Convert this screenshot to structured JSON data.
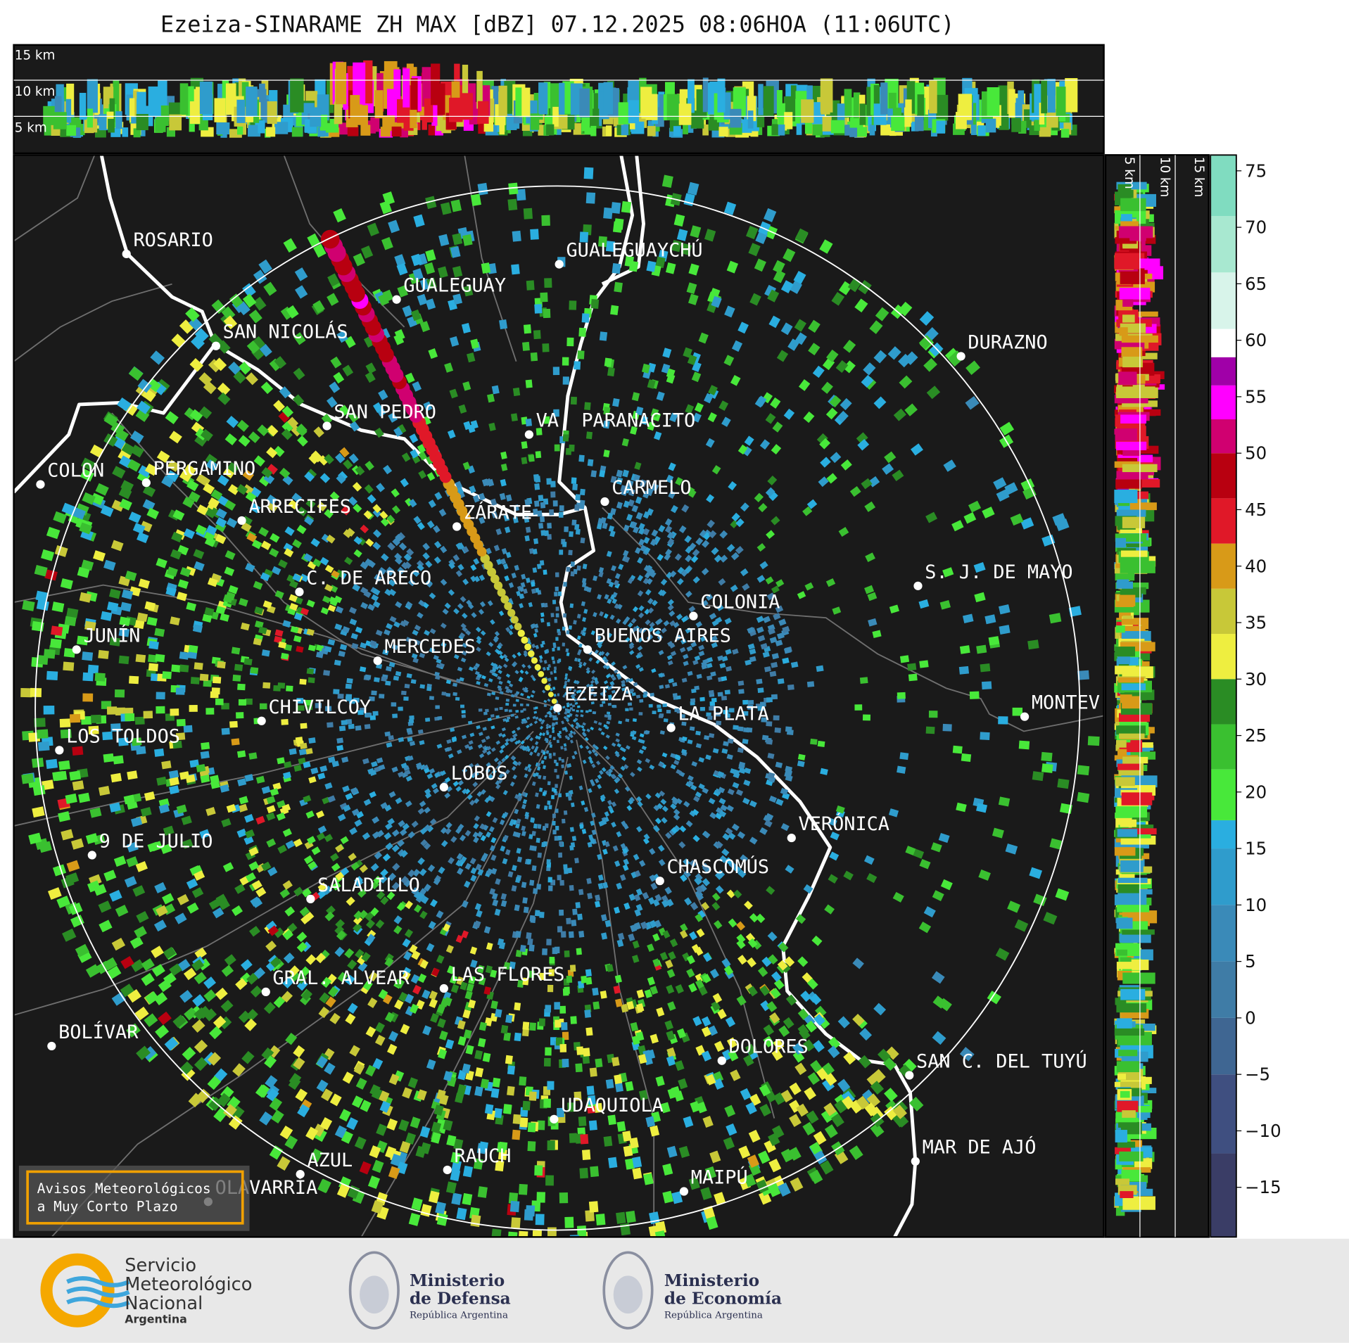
{
  "title": "Ezeiza-SINARAME ZH MAX [dBZ] 07.12.2025 08:06HOA (11:06UTC)",
  "profile_labels": {
    "top": [
      "15 km",
      "10 km",
      "5 km"
    ],
    "side": [
      "5 km",
      "10 km",
      "15 km"
    ]
  },
  "cities": [
    "ROSARIO",
    "GUALEGUAYCHÚ",
    "GUALEGUAY",
    "SAN NICOLÁS",
    "DURAZNO",
    "SAN PEDRO",
    "VA. PARANACITO",
    "COLON",
    "PERGAMINO",
    "CARMELO",
    "ARRECIFES",
    "ZÁRATE",
    "S. J. DE MAYO",
    "C. DE ARECO",
    "COLONIA",
    "BUENOS AIRES",
    "JUNÍN",
    "MERCEDES",
    "EZEIZA",
    "MONTEV",
    "LA PLATA",
    "CHIVILCOY",
    "LOS TOLDOS",
    "LOBOS",
    "VERÓNICA",
    "9 DE JULIO",
    "CHASCOMÚS",
    "SALADILLO",
    "GRAL. ALVEAR",
    "LAS FLORES",
    "BOLÍVAR",
    "DOLORES",
    "SAN C. DEL TUYÚ",
    "UDAQUIOLA",
    "MAR DE AJÓ",
    "AZUL",
    "RAUCH",
    "MAIPÚ",
    "OLAVARRÍA"
  ],
  "colorbar": {
    "lim": [
      -19.4,
      76.4
    ],
    "ticks": [
      75,
      70,
      65,
      60,
      55,
      50,
      45,
      40,
      35,
      30,
      25,
      20,
      15,
      10,
      5,
      0,
      {
        "value": -5,
        "label": "−5"
      },
      {
        "value": -10,
        "label": "−10"
      },
      {
        "value": -15,
        "label": "−15"
      }
    ],
    "stops": [
      [
        -19.4,
        "#3a3d66"
      ],
      [
        -12,
        "#3f4f80"
      ],
      [
        -5,
        "#3f6692"
      ],
      [
        0,
        "#3f7ca6"
      ],
      [
        5,
        "#3a8ab8"
      ],
      [
        10,
        "#2f9ccc"
      ],
      [
        15,
        "#2aaee0"
      ],
      [
        17.5,
        "#48e83a"
      ],
      [
        22,
        "#3ac030"
      ],
      [
        26,
        "#2a8c24"
      ],
      [
        30,
        "#eeee40"
      ],
      [
        34,
        "#c8c838"
      ],
      [
        38,
        "#d89a18"
      ],
      [
        42,
        "#e01828"
      ],
      [
        46,
        "#b80010"
      ],
      [
        50,
        "#d00070"
      ],
      [
        53,
        "#ff00ff"
      ],
      [
        56,
        "#a000a8"
      ],
      [
        58.5,
        "#ffffff"
      ],
      [
        61,
        "#d8f4ea"
      ],
      [
        66,
        "#a8e8d0"
      ],
      [
        71,
        "#80dcc0"
      ]
    ]
  },
  "warning_box": {
    "lines": [
      "Avisos Meteorológicos",
      "a Muy Corto Plazo"
    ]
  },
  "footer": {
    "smn": [
      "Servicio",
      "Meteorológico",
      "Nacional",
      "Argentina"
    ],
    "defensa": [
      "Ministerio",
      "de Defensa",
      "República Argentina"
    ],
    "economia": [
      "Ministerio",
      "de Economía",
      "República Argentina"
    ]
  }
}
